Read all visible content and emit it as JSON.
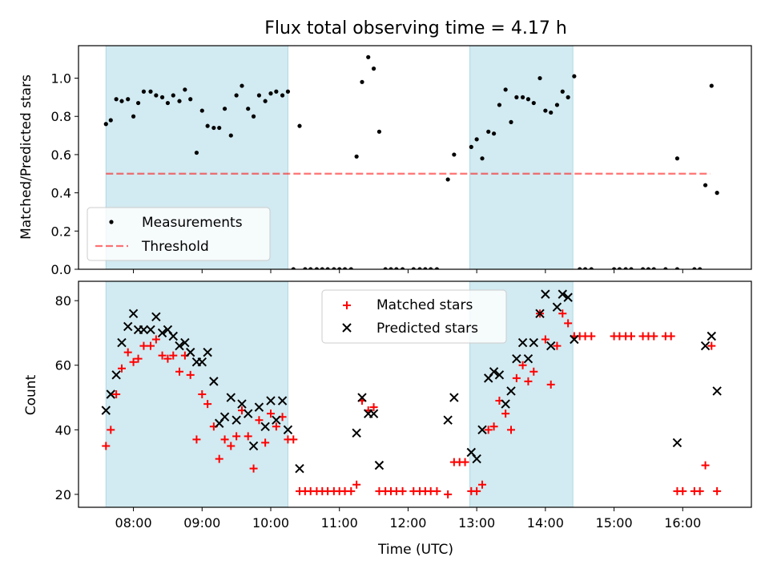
{
  "title": "Flux total observing time = 4.17 h",
  "colors": {
    "shade": "#add8e6",
    "measure": "#000000",
    "threshold": "#ff0000",
    "matched": "#ff0000",
    "predicted": "#000000"
  },
  "chart_data": [
    {
      "type": "scatter",
      "id": "top",
      "ylabel": "Matched/Predicted stars",
      "xlabel": "",
      "xlim": [
        7.2,
        17.0
      ],
      "ylim": [
        0,
        1.17
      ],
      "yticks": [
        0.0,
        0.2,
        0.4,
        0.6,
        0.8,
        1.0
      ],
      "ytick_labels": [
        "0.0",
        "0.2",
        "0.4",
        "0.6",
        "0.8",
        "1.0"
      ],
      "shaded_spans": [
        [
          7.6,
          10.25
        ],
        [
          12.9,
          14.4
        ]
      ],
      "threshold": {
        "value": 0.5,
        "x_start": 7.6,
        "x_end": 16.4
      },
      "legend": {
        "position": "lower-left",
        "entries": [
          "Measurements",
          "Threshold"
        ]
      },
      "series": [
        {
          "name": "Measurements",
          "marker": "dot",
          "points": [
            [
              7.6,
              0.76
            ],
            [
              7.67,
              0.78
            ],
            [
              7.75,
              0.89
            ],
            [
              7.83,
              0.88
            ],
            [
              7.92,
              0.89
            ],
            [
              8.0,
              0.8
            ],
            [
              8.07,
              0.87
            ],
            [
              8.15,
              0.93
            ],
            [
              8.25,
              0.93
            ],
            [
              8.33,
              0.91
            ],
            [
              8.42,
              0.9
            ],
            [
              8.5,
              0.87
            ],
            [
              8.58,
              0.91
            ],
            [
              8.67,
              0.88
            ],
            [
              8.75,
              0.94
            ],
            [
              8.83,
              0.89
            ],
            [
              8.92,
              0.61
            ],
            [
              9.0,
              0.83
            ],
            [
              9.08,
              0.75
            ],
            [
              9.17,
              0.74
            ],
            [
              9.25,
              0.74
            ],
            [
              9.33,
              0.84
            ],
            [
              9.42,
              0.7
            ],
            [
              9.5,
              0.91
            ],
            [
              9.58,
              0.96
            ],
            [
              9.67,
              0.84
            ],
            [
              9.75,
              0.8
            ],
            [
              9.83,
              0.91
            ],
            [
              9.92,
              0.88
            ],
            [
              10.0,
              0.92
            ],
            [
              10.08,
              0.93
            ],
            [
              10.17,
              0.91
            ],
            [
              10.25,
              0.93
            ],
            [
              10.33,
              0.0
            ],
            [
              10.42,
              0.75
            ],
            [
              10.5,
              0.0
            ],
            [
              10.58,
              0.0
            ],
            [
              10.67,
              0.0
            ],
            [
              10.75,
              0.0
            ],
            [
              10.83,
              0.0
            ],
            [
              10.92,
              0.0
            ],
            [
              11.0,
              0.0
            ],
            [
              11.08,
              0.0
            ],
            [
              11.17,
              0.0
            ],
            [
              11.25,
              0.59
            ],
            [
              11.33,
              0.98
            ],
            [
              11.42,
              1.11
            ],
            [
              11.5,
              1.05
            ],
            [
              11.58,
              0.72
            ],
            [
              11.67,
              0.0
            ],
            [
              11.75,
              0.0
            ],
            [
              11.83,
              0.0
            ],
            [
              11.92,
              0.0
            ],
            [
              12.08,
              0.0
            ],
            [
              12.17,
              0.0
            ],
            [
              12.25,
              0.0
            ],
            [
              12.33,
              0.0
            ],
            [
              12.42,
              0.0
            ],
            [
              12.58,
              0.47
            ],
            [
              12.67,
              0.6
            ],
            [
              12.92,
              0.64
            ],
            [
              13.0,
              0.68
            ],
            [
              13.08,
              0.58
            ],
            [
              13.17,
              0.72
            ],
            [
              13.25,
              0.71
            ],
            [
              13.33,
              0.86
            ],
            [
              13.42,
              0.94
            ],
            [
              13.5,
              0.77
            ],
            [
              13.58,
              0.9
            ],
            [
              13.67,
              0.9
            ],
            [
              13.75,
              0.89
            ],
            [
              13.83,
              0.87
            ],
            [
              13.92,
              1.0
            ],
            [
              14.0,
              0.83
            ],
            [
              14.08,
              0.82
            ],
            [
              14.17,
              0.86
            ],
            [
              14.25,
              0.93
            ],
            [
              14.33,
              0.9
            ],
            [
              14.42,
              1.01
            ],
            [
              14.5,
              0.0
            ],
            [
              14.58,
              0.0
            ],
            [
              14.67,
              0.0
            ],
            [
              15.0,
              0.0
            ],
            [
              15.08,
              0.0
            ],
            [
              15.17,
              0.0
            ],
            [
              15.25,
              0.0
            ],
            [
              15.42,
              0.0
            ],
            [
              15.5,
              0.0
            ],
            [
              15.58,
              0.0
            ],
            [
              15.75,
              0.0
            ],
            [
              15.92,
              0.58
            ],
            [
              15.92,
              0.0
            ],
            [
              16.17,
              0.0
            ],
            [
              16.25,
              0.0
            ],
            [
              16.33,
              0.44
            ],
            [
              16.42,
              0.96
            ],
            [
              16.5,
              0.4
            ]
          ]
        }
      ]
    },
    {
      "type": "scatter",
      "id": "bottom",
      "ylabel": "Count",
      "xlabel": "Time (UTC)",
      "xlim": [
        7.2,
        17.0
      ],
      "ylim": [
        16,
        86
      ],
      "yticks": [
        20,
        40,
        60,
        80
      ],
      "ytick_labels": [
        "20",
        "40",
        "60",
        "80"
      ],
      "xticks": [
        8,
        9,
        10,
        11,
        12,
        13,
        14,
        15,
        16
      ],
      "xtick_labels": [
        "08:00",
        "09:00",
        "10:00",
        "11:00",
        "12:00",
        "13:00",
        "14:00",
        "15:00",
        "16:00"
      ],
      "shaded_spans": [
        [
          7.6,
          10.25
        ],
        [
          12.9,
          14.4
        ]
      ],
      "legend": {
        "position": "top-center",
        "entries": [
          "Matched stars",
          "Predicted stars"
        ]
      },
      "series": [
        {
          "name": "Matched stars",
          "marker": "plus",
          "points": [
            [
              7.6,
              35
            ],
            [
              7.67,
              40
            ],
            [
              7.75,
              51
            ],
            [
              7.83,
              59
            ],
            [
              7.92,
              64
            ],
            [
              8.0,
              61
            ],
            [
              8.07,
              62
            ],
            [
              8.15,
              66
            ],
            [
              8.25,
              66
            ],
            [
              8.33,
              68
            ],
            [
              8.42,
              63
            ],
            [
              8.5,
              62
            ],
            [
              8.58,
              63
            ],
            [
              8.67,
              58
            ],
            [
              8.75,
              63
            ],
            [
              8.83,
              57
            ],
            [
              8.92,
              37
            ],
            [
              9.0,
              51
            ],
            [
              9.08,
              48
            ],
            [
              9.17,
              41
            ],
            [
              9.25,
              31
            ],
            [
              9.33,
              37
            ],
            [
              9.42,
              35
            ],
            [
              9.5,
              38
            ],
            [
              9.58,
              46
            ],
            [
              9.67,
              38
            ],
            [
              9.75,
              28
            ],
            [
              9.83,
              43
            ],
            [
              9.92,
              36
            ],
            [
              10.0,
              45
            ],
            [
              10.08,
              41
            ],
            [
              10.17,
              44
            ],
            [
              10.25,
              37
            ],
            [
              10.33,
              37
            ],
            [
              10.42,
              21
            ],
            [
              10.5,
              21
            ],
            [
              10.58,
              21
            ],
            [
              10.67,
              21
            ],
            [
              10.75,
              21
            ],
            [
              10.83,
              21
            ],
            [
              10.92,
              21
            ],
            [
              11.0,
              21
            ],
            [
              11.08,
              21
            ],
            [
              11.17,
              21
            ],
            [
              11.25,
              23
            ],
            [
              11.33,
              49
            ],
            [
              11.42,
              46
            ],
            [
              11.5,
              47
            ],
            [
              11.58,
              21
            ],
            [
              11.67,
              21
            ],
            [
              11.75,
              21
            ],
            [
              11.83,
              21
            ],
            [
              11.92,
              21
            ],
            [
              12.08,
              21
            ],
            [
              12.17,
              21
            ],
            [
              12.25,
              21
            ],
            [
              12.33,
              21
            ],
            [
              12.42,
              21
            ],
            [
              12.58,
              20
            ],
            [
              12.67,
              30
            ],
            [
              12.75,
              30
            ],
            [
              12.83,
              30
            ],
            [
              12.92,
              21
            ],
            [
              13.0,
              21
            ],
            [
              13.08,
              23
            ],
            [
              13.17,
              40
            ],
            [
              13.25,
              41
            ],
            [
              13.33,
              49
            ],
            [
              13.42,
              45
            ],
            [
              13.5,
              40
            ],
            [
              13.58,
              56
            ],
            [
              13.67,
              60
            ],
            [
              13.75,
              55
            ],
            [
              13.83,
              58
            ],
            [
              13.92,
              76
            ],
            [
              14.0,
              68
            ],
            [
              14.08,
              54
            ],
            [
              14.17,
              66
            ],
            [
              14.25,
              76
            ],
            [
              14.33,
              73
            ],
            [
              14.42,
              69
            ],
            [
              14.5,
              69
            ],
            [
              14.58,
              69
            ],
            [
              14.67,
              69
            ],
            [
              15.0,
              69
            ],
            [
              15.08,
              69
            ],
            [
              15.17,
              69
            ],
            [
              15.25,
              69
            ],
            [
              15.42,
              69
            ],
            [
              15.5,
              69
            ],
            [
              15.58,
              69
            ],
            [
              15.75,
              69
            ],
            [
              15.83,
              69
            ],
            [
              15.92,
              21
            ],
            [
              16.0,
              21
            ],
            [
              16.17,
              21
            ],
            [
              16.25,
              21
            ],
            [
              16.33,
              29
            ],
            [
              16.42,
              66
            ],
            [
              16.5,
              21
            ]
          ]
        },
        {
          "name": "Predicted stars",
          "marker": "x",
          "points": [
            [
              7.6,
              46
            ],
            [
              7.67,
              51
            ],
            [
              7.75,
              57
            ],
            [
              7.83,
              67
            ],
            [
              7.92,
              72
            ],
            [
              8.0,
              76
            ],
            [
              8.07,
              71
            ],
            [
              8.15,
              71
            ],
            [
              8.25,
              71
            ],
            [
              8.33,
              75
            ],
            [
              8.42,
              70
            ],
            [
              8.5,
              71
            ],
            [
              8.58,
              69
            ],
            [
              8.67,
              66
            ],
            [
              8.75,
              67
            ],
            [
              8.83,
              64
            ],
            [
              8.92,
              61
            ],
            [
              9.0,
              61
            ],
            [
              9.08,
              64
            ],
            [
              9.17,
              55
            ],
            [
              9.25,
              42
            ],
            [
              9.33,
              44
            ],
            [
              9.42,
              50
            ],
            [
              9.5,
              43
            ],
            [
              9.58,
              48
            ],
            [
              9.67,
              45
            ],
            [
              9.75,
              35
            ],
            [
              9.83,
              47
            ],
            [
              9.92,
              41
            ],
            [
              10.0,
              49
            ],
            [
              10.08,
              43
            ],
            [
              10.17,
              49
            ],
            [
              10.25,
              40
            ],
            [
              10.42,
              28
            ],
            [
              11.25,
              39
            ],
            [
              11.33,
              50
            ],
            [
              11.42,
              45
            ],
            [
              11.5,
              45
            ],
            [
              11.58,
              29
            ],
            [
              12.58,
              43
            ],
            [
              12.67,
              50
            ],
            [
              12.92,
              33
            ],
            [
              13.0,
              31
            ],
            [
              13.08,
              40
            ],
            [
              13.17,
              56
            ],
            [
              13.25,
              58
            ],
            [
              13.33,
              57
            ],
            [
              13.42,
              48
            ],
            [
              13.5,
              52
            ],
            [
              13.58,
              62
            ],
            [
              13.67,
              67
            ],
            [
              13.75,
              62
            ],
            [
              13.83,
              67
            ],
            [
              13.92,
              76
            ],
            [
              14.0,
              82
            ],
            [
              14.08,
              66
            ],
            [
              14.17,
              78
            ],
            [
              14.25,
              82
            ],
            [
              14.33,
              81
            ],
            [
              14.42,
              68
            ],
            [
              15.92,
              36
            ],
            [
              16.33,
              66
            ],
            [
              16.42,
              69
            ],
            [
              16.5,
              52
            ]
          ]
        }
      ]
    }
  ]
}
